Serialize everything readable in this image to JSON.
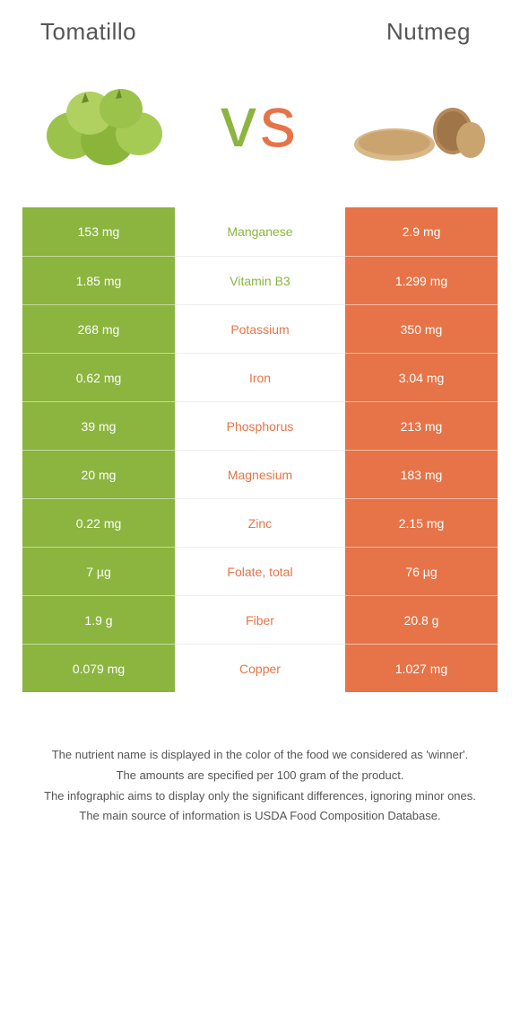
{
  "left": {
    "name": "Tomatillo",
    "color": "#8bb53f"
  },
  "right": {
    "name": "Nutmeg",
    "color": "#e67448"
  },
  "label_colors": {
    "left": "#8bb53f",
    "right": "#e67448"
  },
  "rows": [
    {
      "left": "153 mg",
      "label": "Manganese",
      "right": "2.9 mg",
      "winner": "left"
    },
    {
      "left": "1.85 mg",
      "label": "Vitamin B3",
      "right": "1.299 mg",
      "winner": "left"
    },
    {
      "left": "268 mg",
      "label": "Potassium",
      "right": "350 mg",
      "winner": "right"
    },
    {
      "left": "0.62 mg",
      "label": "Iron",
      "right": "3.04 mg",
      "winner": "right"
    },
    {
      "left": "39 mg",
      "label": "Phosphorus",
      "right": "213 mg",
      "winner": "right"
    },
    {
      "left": "20 mg",
      "label": "Magnesium",
      "right": "183 mg",
      "winner": "right"
    },
    {
      "left": "0.22 mg",
      "label": "Zinc",
      "right": "2.15 mg",
      "winner": "right"
    },
    {
      "left": "7 µg",
      "label": "Folate, total",
      "right": "76 µg",
      "winner": "right"
    },
    {
      "left": "1.9 g",
      "label": "Fiber",
      "right": "20.8 g",
      "winner": "right"
    },
    {
      "left": "0.079 mg",
      "label": "Copper",
      "right": "1.027 mg",
      "winner": "right"
    }
  ],
  "footnotes": [
    "The nutrient name is displayed in the color of the food we considered as 'winner'.",
    "The amounts are specified per 100 gram of the product.",
    "The infographic aims to display only the significant differences, ignoring minor ones.",
    "The main source of information is USDA Food Composition Database."
  ]
}
